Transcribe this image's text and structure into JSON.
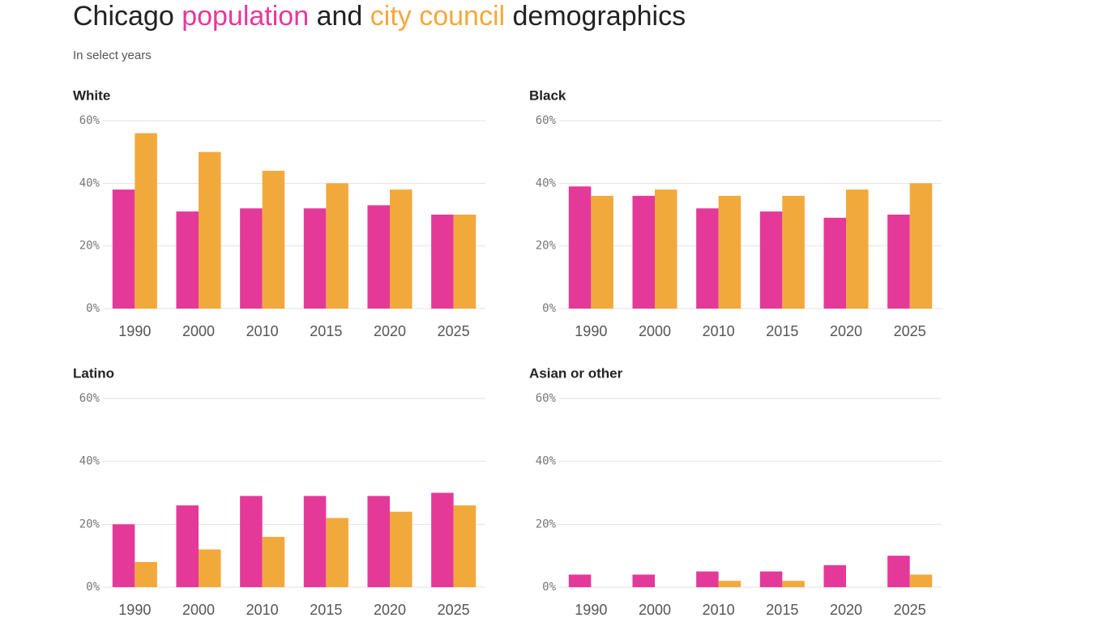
{
  "title": {
    "start": "Chicago",
    "middle": "and",
    "end": "demographics"
  },
  "subtitle": "In select years",
  "series": [
    {
      "name": "population",
      "color": "#e5399a"
    },
    {
      "name": "city council",
      "color": "#f2a93b"
    }
  ],
  "chart_data": [
    {
      "type": "bar",
      "title": "White",
      "categories": [
        "1990",
        "2000",
        "2010",
        "2015",
        "2020",
        "2025"
      ],
      "series": [
        {
          "values": [
            38,
            31,
            32,
            32,
            33,
            30
          ]
        },
        {
          "values": [
            56,
            50,
            44,
            40,
            38,
            30
          ]
        }
      ],
      "ylim": [
        0,
        60
      ],
      "yticks": [
        {
          "value": 0,
          "label": "0%"
        },
        {
          "value": 20,
          "label": "20%"
        },
        {
          "value": 40,
          "label": "40%"
        },
        {
          "value": 60,
          "label": "60%"
        }
      ],
      "grid": true
    },
    {
      "type": "bar",
      "title": "Black",
      "categories": [
        "1990",
        "2000",
        "2010",
        "2015",
        "2020",
        "2025"
      ],
      "series": [
        {
          "values": [
            39,
            36,
            32,
            31,
            29,
            30
          ]
        },
        {
          "values": [
            36,
            38,
            36,
            36,
            38,
            40
          ]
        }
      ],
      "ylim": [
        0,
        60
      ],
      "yticks": [
        {
          "value": 0,
          "label": "0%"
        },
        {
          "value": 20,
          "label": "20%"
        },
        {
          "value": 40,
          "label": "40%"
        },
        {
          "value": 60,
          "label": "60%"
        }
      ],
      "grid": true
    },
    {
      "type": "bar",
      "title": "Latino",
      "categories": [
        "1990",
        "2000",
        "2010",
        "2015",
        "2020",
        "2025"
      ],
      "series": [
        {
          "values": [
            20,
            26,
            29,
            29,
            29,
            30
          ]
        },
        {
          "values": [
            8,
            12,
            16,
            22,
            24,
            26
          ]
        }
      ],
      "ylim": [
        0,
        60
      ],
      "yticks": [
        {
          "value": 0,
          "label": "0%"
        },
        {
          "value": 20,
          "label": "20%"
        },
        {
          "value": 40,
          "label": "40%"
        },
        {
          "value": 60,
          "label": "60%"
        }
      ],
      "grid": true
    },
    {
      "type": "bar",
      "title": "Asian or other",
      "categories": [
        "1990",
        "2000",
        "2010",
        "2015",
        "2020",
        "2025"
      ],
      "series": [
        {
          "values": [
            4,
            4,
            5,
            5,
            7,
            10
          ]
        },
        {
          "values": [
            0,
            0,
            2,
            2,
            0,
            4
          ]
        }
      ],
      "ylim": [
        0,
        60
      ],
      "yticks": [
        {
          "value": 0,
          "label": "0%"
        },
        {
          "value": 20,
          "label": "20%"
        },
        {
          "value": 40,
          "label": "40%"
        },
        {
          "value": 60,
          "label": "60%"
        }
      ],
      "grid": true
    }
  ]
}
